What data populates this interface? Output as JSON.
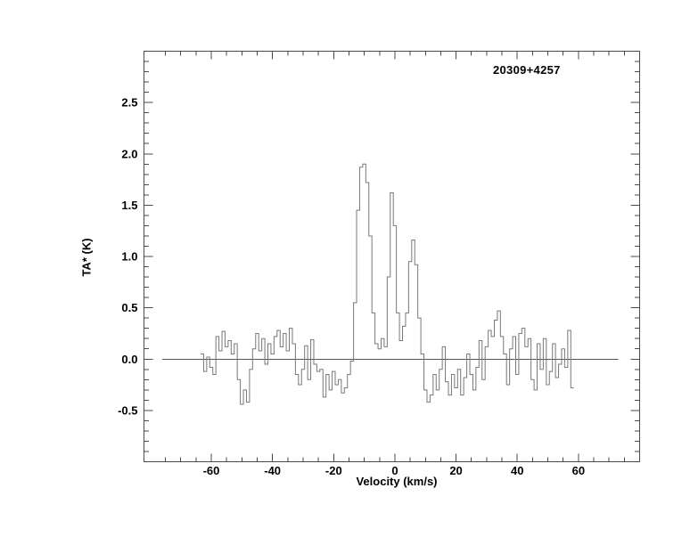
{
  "chart": {
    "title": "20309+4257",
    "xlabel": "Velocity (km/s)",
    "ylabel": "TA* (K)",
    "colors": {
      "background": "#ffffff",
      "axis": "#4a4a4a",
      "data_line": "#787878",
      "zero_line": "#555555",
      "text": "#000000"
    }
  },
  "chart_data": {
    "type": "line",
    "style": "histogram-step",
    "title": "20309+4257",
    "xlabel": "Velocity (km/s)",
    "ylabel": "TA* (K)",
    "xlim": [
      -82,
      80
    ],
    "ylim": [
      -1.0,
      3.0
    ],
    "grid": false,
    "legend": "none",
    "x_major_ticks": [
      -60,
      -40,
      -20,
      0,
      20,
      40,
      60
    ],
    "x_tick_labels": [
      "-60",
      "-40",
      "-20",
      "0",
      "20",
      "40",
      "60"
    ],
    "x_minor_step": 5,
    "y_major_ticks": [
      -0.5,
      0.0,
      0.5,
      1.0,
      1.5,
      2.0,
      2.5
    ],
    "y_tick_labels": [
      "-0.5",
      "0.0",
      "0.5",
      "1.0",
      "1.5",
      "2.0",
      "2.5"
    ],
    "y_minor_step": 0.1,
    "zero_line": {
      "y": 0.0,
      "x_start": -76,
      "x_end": 73
    },
    "x_start": -63,
    "x_step": 1.0,
    "values": [
      0.05,
      -0.12,
      0.02,
      -0.08,
      -0.15,
      0.22,
      0.08,
      0.27,
      0.12,
      0.18,
      0.05,
      0.15,
      -0.2,
      -0.44,
      -0.3,
      -0.42,
      -0.1,
      0.1,
      0.25,
      0.08,
      0.2,
      -0.05,
      0.15,
      0.05,
      0.22,
      0.28,
      0.12,
      0.25,
      0.08,
      0.3,
      0.15,
      -0.15,
      -0.25,
      -0.1,
      0.13,
      -0.2,
      0.19,
      -0.05,
      -0.12,
      -0.1,
      -0.37,
      -0.15,
      -0.3,
      -0.12,
      -0.25,
      -0.2,
      -0.33,
      -0.28,
      -0.15,
      -0.02,
      0.55,
      1.45,
      1.87,
      1.9,
      1.72,
      1.2,
      0.45,
      0.15,
      0.1,
      0.2,
      0.12,
      0.8,
      1.62,
      1.3,
      0.45,
      0.18,
      0.32,
      0.45,
      0.95,
      1.16,
      0.92,
      0.4,
      0.05,
      -0.3,
      -0.42,
      -0.35,
      -0.15,
      -0.3,
      -0.1,
      0.12,
      -0.22,
      -0.35,
      -0.15,
      -0.28,
      -0.1,
      -0.35,
      -0.18,
      0.05,
      -0.15,
      -0.3,
      -0.08,
      0.18,
      -0.2,
      0.12,
      0.28,
      0.22,
      0.38,
      0.47,
      0.22,
      0.05,
      -0.25,
      0.1,
      0.22,
      -0.15,
      0.25,
      0.3,
      0.12,
      0.2,
      -0.2,
      -0.3,
      0.15,
      -0.1,
      0.2,
      -0.25,
      -0.12,
      0.15,
      -0.18,
      -0.05,
      0.1,
      -0.08,
      0.28,
      -0.28
    ],
    "peaks_note": [
      {
        "velocity": -10,
        "value": 1.9
      },
      {
        "velocity": -1,
        "value": 1.62
      },
      {
        "velocity": 6,
        "value": 1.16
      },
      {
        "velocity": 34,
        "value": 0.47
      }
    ]
  }
}
